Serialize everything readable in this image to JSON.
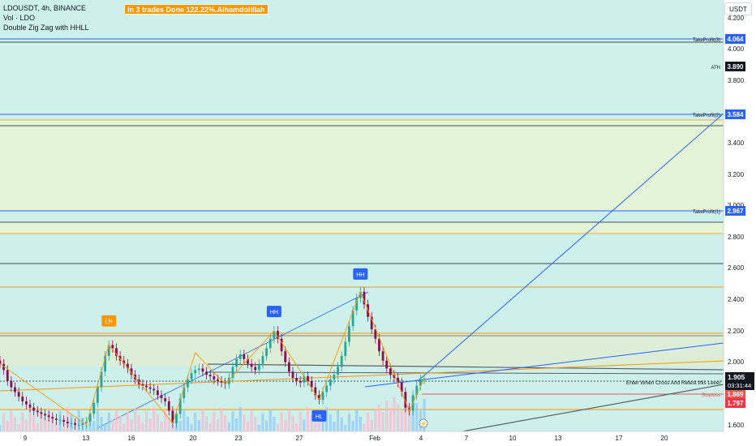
{
  "legend": {
    "symbol": "LDOUSDT, 4h, BINANCE",
    "volume": "Vol · LDO",
    "indicator": "Double Zig Zag with HHLL"
  },
  "banner": "In 3 trades Done 122.22%.Alhamdolillah",
  "currency": "USDT",
  "colors": {
    "zone_teal": "#cff1e9",
    "zone_green": "#e3f4d7",
    "takeprofit": "#2962ff",
    "ath": "#131722",
    "entry": "#131722",
    "stoploss": "#ef5350",
    "support": "#f23645",
    "bull": "#26a69a",
    "bear": "#880e4f",
    "orange": "#ff9800",
    "blue_label": "#2962ff"
  },
  "chart_data": {
    "type": "candlestick",
    "y_ticks": [
      "4.200",
      "4.000",
      "3.800",
      "3.400",
      "3.200",
      "3.000",
      "2.800",
      "2.600",
      "2.400",
      "2.200",
      "2.000",
      "1.600"
    ],
    "x_ticks": [
      "9",
      "13",
      "16",
      "20",
      "23",
      "27",
      "Feb",
      "4",
      "7",
      "10",
      "13",
      "17",
      "20"
    ],
    "levels": [
      {
        "label": "TakeProfit(3)",
        "value": "4.064"
      },
      {
        "label": "ATH",
        "value": "3.890"
      },
      {
        "label": "TakeProfit(2)",
        "value": "3.584"
      },
      {
        "label": "TakeProfit(1)",
        "value": "2.967"
      },
      {
        "label": "Enter When Cross And Retest this Level",
        "value": ""
      },
      {
        "label": "Stoploss",
        "value": "1.869"
      }
    ],
    "price_tags": {
      "current": "1.905",
      "countdown": "03:31:44",
      "support": "1.797"
    },
    "pivot_labels": [
      {
        "text": "LH",
        "price": 2.16,
        "color": "orange"
      },
      {
        "text": "HH",
        "price": 2.22,
        "color": "blue"
      },
      {
        "text": "HH",
        "price": 2.46,
        "color": "blue"
      },
      {
        "text": "HL",
        "price": 1.75,
        "color": "blue"
      }
    ],
    "closes": [
      2.0,
      1.96,
      1.89,
      1.85,
      1.82,
      1.79,
      1.76,
      1.74,
      1.72,
      1.7,
      1.69,
      1.68,
      1.67,
      1.66,
      1.65,
      1.64,
      1.64,
      1.63,
      1.62,
      1.62,
      1.61,
      1.61,
      1.62,
      1.63,
      1.68,
      1.75,
      1.85,
      1.95,
      2.05,
      2.12,
      2.1,
      2.05,
      2.02,
      2.0,
      1.97,
      1.93,
      1.9,
      1.87,
      1.86,
      1.85,
      1.84,
      1.83,
      1.8,
      1.78,
      1.76,
      1.7,
      1.62,
      1.68,
      1.78,
      1.85,
      1.9,
      1.94,
      1.96,
      1.97,
      1.95,
      1.93,
      1.92,
      1.9,
      1.89,
      1.88,
      1.87,
      1.91,
      1.98,
      2.03,
      2.06,
      2.03,
      2.0,
      1.98,
      1.96,
      2.0,
      2.05,
      2.1,
      2.16,
      2.21,
      2.16,
      2.08,
      2.01,
      1.95,
      1.91,
      1.89,
      1.88,
      1.92,
      1.89,
      1.85,
      1.8,
      1.77,
      1.82,
      1.86,
      1.9,
      1.93,
      1.98,
      2.05,
      2.14,
      2.24,
      2.34,
      2.42,
      2.46,
      2.38,
      2.3,
      2.22,
      2.16,
      2.08,
      2.02,
      1.97,
      1.93,
      1.91,
      1.88,
      1.82,
      1.72,
      1.7,
      1.8,
      1.86,
      1.9,
      1.905
    ]
  }
}
